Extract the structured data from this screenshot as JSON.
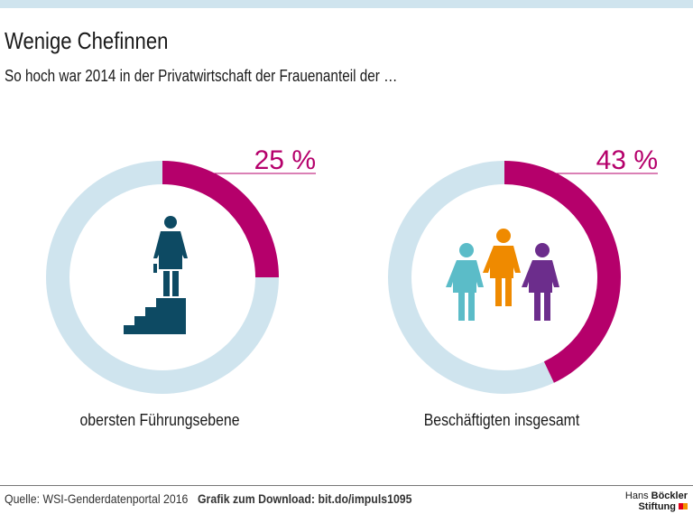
{
  "title": "Wenige Chefinnen",
  "subtitle": "So hoch war 2014 in der Privatwirtschaft der Frauenanteil der …",
  "chart_data": [
    {
      "type": "pie",
      "style": "donut",
      "values": [
        25,
        75
      ],
      "label": "25 %",
      "category": "obersten Führungsebene",
      "icon": "businesswoman-on-stairs-icon"
    },
    {
      "type": "pie",
      "style": "donut",
      "values": [
        43,
        57
      ],
      "label": "43 %",
      "category": "Beschäftigten insgesamt",
      "icon": "three-women-icon"
    }
  ],
  "colors": {
    "share": "#b5006b",
    "rest": "#cfe4ee",
    "icon_dark": "#0d4a63",
    "teal": "#5bbcc8",
    "orange": "#ef8a00",
    "purple": "#6c2d8c"
  },
  "footer": {
    "source": "Quelle: WSI-Genderdatenportal",
    "year": "2016",
    "download": "Grafik zum Download: bit.do/impuls1095",
    "logo": "Hans Böckler Stiftung"
  }
}
